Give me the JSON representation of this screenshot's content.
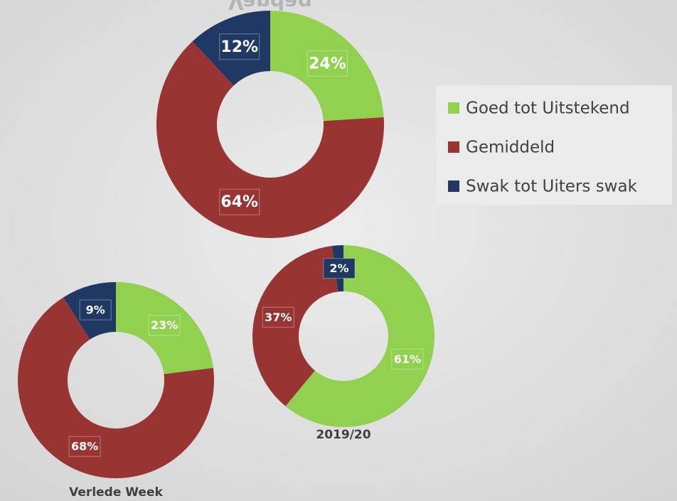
{
  "chart_data": [
    {
      "type": "pie",
      "title": "Vandag",
      "categories": [
        "Goed tot Uitstekend",
        "Gemiddeld",
        "Swak tot Uiters swak"
      ],
      "colors": [
        "#92d050",
        "#983533",
        "#1f3864"
      ],
      "values": [
        24,
        64,
        12
      ],
      "value_labels": [
        "24%",
        "64%",
        "12%"
      ]
    },
    {
      "type": "pie",
      "title": "Verlede Week",
      "categories": [
        "Goed tot Uitstekend",
        "Gemiddeld",
        "Swak tot Uiters swak"
      ],
      "colors": [
        "#92d050",
        "#983533",
        "#1f3864"
      ],
      "values": [
        23,
        68,
        9
      ],
      "value_labels": [
        "23%",
        "68%",
        "9%"
      ]
    },
    {
      "type": "pie",
      "title": "2019/20",
      "categories": [
        "Goed tot Uitstekend",
        "Gemiddeld",
        "Swak tot Uiters swak"
      ],
      "colors": [
        "#92d050",
        "#983533",
        "#1f3864"
      ],
      "values": [
        61,
        37,
        2
      ],
      "value_labels": [
        "61%",
        "37%",
        "2%"
      ]
    }
  ]
}
